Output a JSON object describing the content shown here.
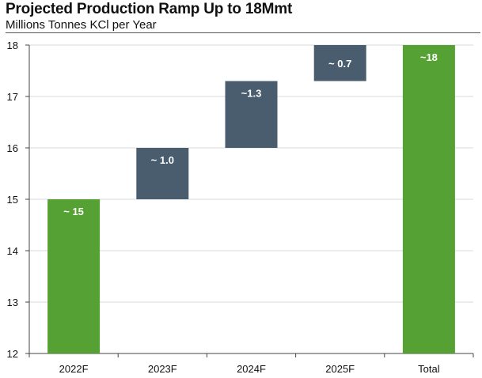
{
  "header": {
    "title": "Projected Production Ramp Up to 18Mmt",
    "subtitle": "Millions Tonnes KCl per Year"
  },
  "colors": {
    "total_bar": "#55a134",
    "increment_bar": "#4a5d6e",
    "grid": "#d9d9d9",
    "axis": "#444444"
  },
  "chart_data": {
    "type": "bar",
    "subtype": "waterfall",
    "title": "Projected Production Ramp Up to 18Mmt",
    "ylabel": "Millions Tonnes KCl per Year",
    "ylim": [
      12,
      18
    ],
    "yticks": [
      12,
      13,
      14,
      15,
      16,
      17,
      18
    ],
    "grid": true,
    "categories": [
      "2022F",
      "2023F",
      "2024F",
      "2025F",
      "Total"
    ],
    "bars": [
      {
        "category": "2022F",
        "kind": "total",
        "base": 12,
        "top": 15,
        "label": "~ 15"
      },
      {
        "category": "2023F",
        "kind": "increment",
        "base": 15,
        "top": 16,
        "label": "~ 1.0"
      },
      {
        "category": "2024F",
        "kind": "increment",
        "base": 16,
        "top": 17.3,
        "label": "~1.3"
      },
      {
        "category": "2025F",
        "kind": "increment",
        "base": 17.3,
        "top": 18,
        "label": "~ 0.7"
      },
      {
        "category": "Total",
        "kind": "total",
        "base": 12,
        "top": 18,
        "label": "~18"
      }
    ]
  }
}
